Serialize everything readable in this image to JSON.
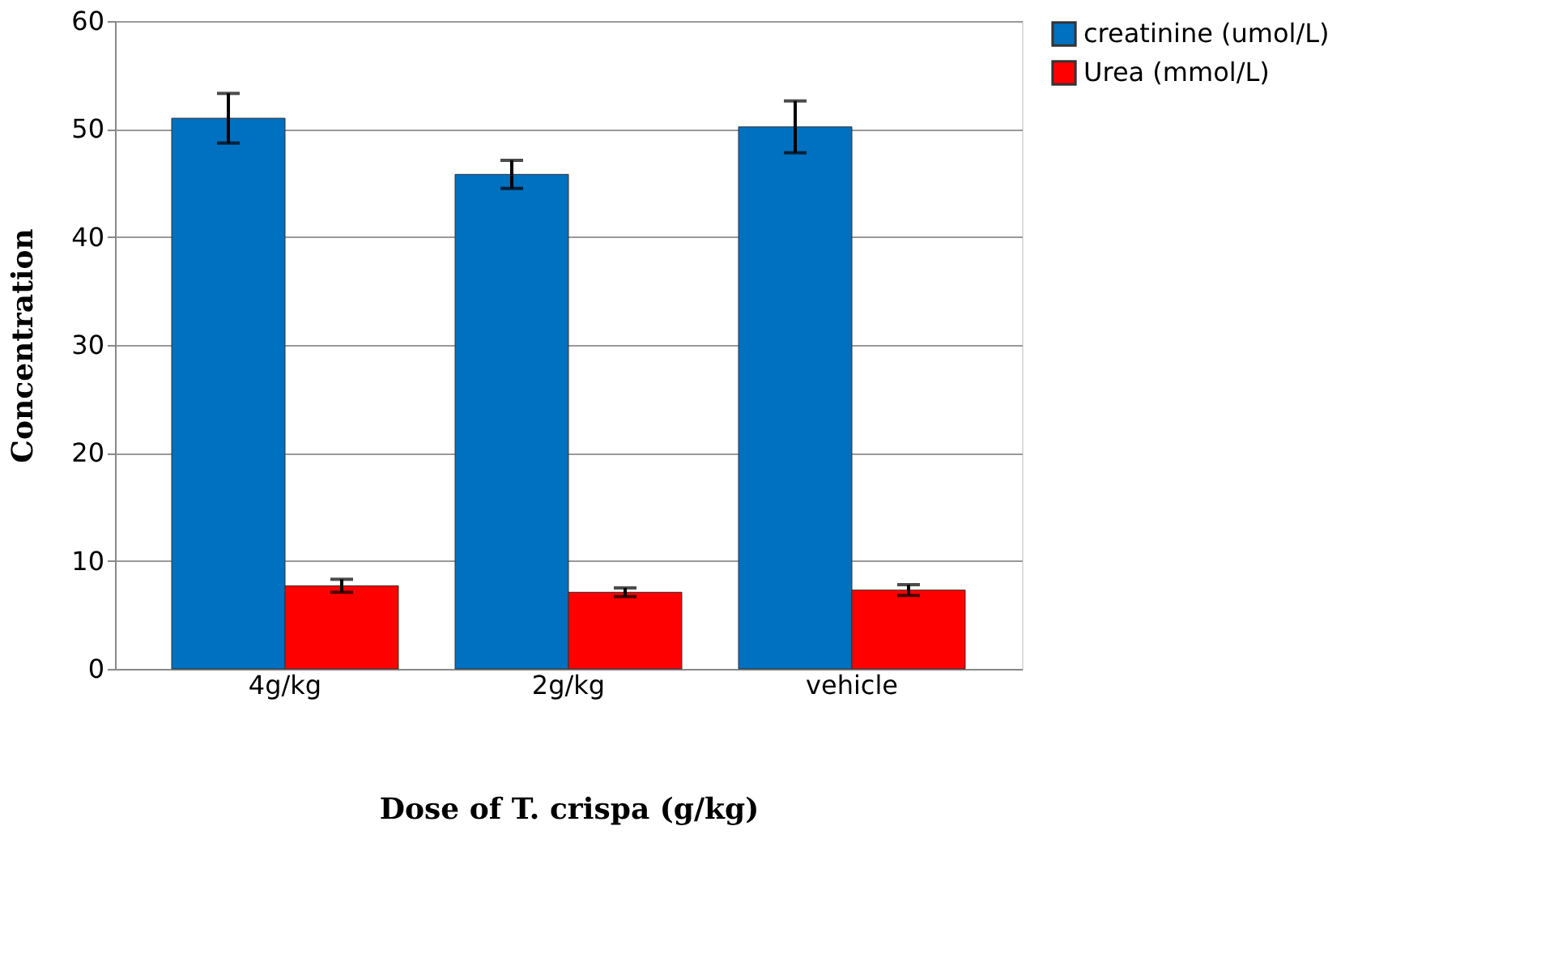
{
  "chart_data": {
    "type": "bar",
    "xlabel": "Dose of T. crispa (g/kg)",
    "ylabel": "Concentration",
    "categories": [
      "4g/kg",
      "2g/kg",
      "vehicle"
    ],
    "series": [
      {
        "name": "creatinine (umol/L)",
        "color": "#0070c0",
        "values": [
          51.0,
          45.8,
          50.2
        ],
        "errors": [
          2.3,
          1.3,
          2.4
        ]
      },
      {
        "name": "Urea (mmol/L)",
        "color": "#ff0000",
        "values": [
          7.7,
          7.1,
          7.3
        ],
        "errors": [
          0.6,
          0.4,
          0.5
        ]
      }
    ],
    "ylim": [
      0,
      60
    ],
    "yticks": [
      0,
      10,
      20,
      30,
      40,
      50,
      60
    ],
    "grid": "y",
    "legend": "right"
  }
}
